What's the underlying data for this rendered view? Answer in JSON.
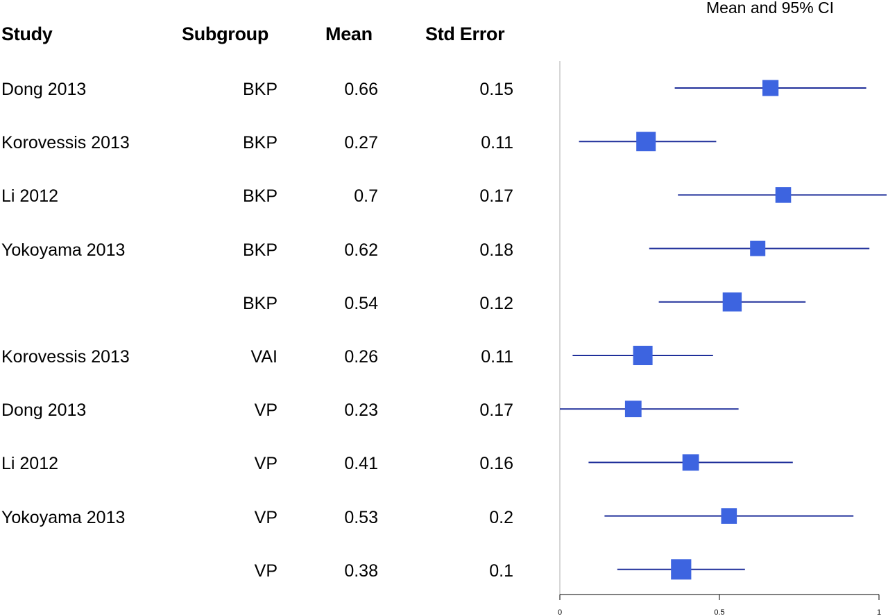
{
  "headers": {
    "study": "Study",
    "subgroup": "Subgroup",
    "mean": "Mean",
    "std_error": "Std Error"
  },
  "rows": [
    {
      "study": "Dong 2013",
      "subgroup": "BKP",
      "mean": "0.66",
      "se": "0.15"
    },
    {
      "study": "Korovessis 2013",
      "subgroup": "BKP",
      "mean": "0.27",
      "se": "0.11"
    },
    {
      "study": "Li 2012",
      "subgroup": "BKP",
      "mean": "0.7",
      "se": "0.17"
    },
    {
      "study": "Yokoyama 2013",
      "subgroup": "BKP",
      "mean": "0.62",
      "se": "0.18"
    },
    {
      "study": "",
      "subgroup": "BKP",
      "mean": "0.54",
      "se": "0.12"
    },
    {
      "study": "Korovessis 2013",
      "subgroup": "VAI",
      "mean": "0.26",
      "se": "0.11"
    },
    {
      "study": "Dong 2013",
      "subgroup": "VP",
      "mean": "0.23",
      "se": "0.17"
    },
    {
      "study": "Li 2012",
      "subgroup": "VP",
      "mean": "0.41",
      "se": "0.16"
    },
    {
      "study": "Yokoyama 2013",
      "subgroup": "VP",
      "mean": "0.53",
      "se": "0.2"
    },
    {
      "study": "",
      "subgroup": "VP",
      "mean": "0.38",
      "se": "0.1"
    }
  ],
  "chart_data": {
    "type": "scatter",
    "title": "Mean and 95% CI",
    "xlim": [
      0,
      1
    ],
    "xticks": [
      0,
      0.5,
      1
    ],
    "xtick_labels": [
      "0",
      "0.5",
      "1"
    ],
    "marker_color": "#3d64e0",
    "line_color": "#1f2f9a",
    "points": [
      {
        "mean": 0.66,
        "lower": 0.36,
        "upper": 0.96,
        "weight": 0.6
      },
      {
        "mean": 0.27,
        "lower": 0.06,
        "upper": 0.49,
        "weight": 1.0
      },
      {
        "mean": 0.7,
        "lower": 0.37,
        "upper": 1.03,
        "weight": 0.55
      },
      {
        "mean": 0.62,
        "lower": 0.28,
        "upper": 0.97,
        "weight": 0.5
      },
      {
        "mean": 0.54,
        "lower": 0.31,
        "upper": 0.77,
        "weight": 0.95
      },
      {
        "mean": 0.26,
        "lower": 0.04,
        "upper": 0.48,
        "weight": 1.0
      },
      {
        "mean": 0.23,
        "lower": 0.0,
        "upper": 0.56,
        "weight": 0.65
      },
      {
        "mean": 0.41,
        "lower": 0.09,
        "upper": 0.73,
        "weight": 0.65
      },
      {
        "mean": 0.53,
        "lower": 0.14,
        "upper": 0.92,
        "weight": 0.55
      },
      {
        "mean": 0.38,
        "lower": 0.18,
        "upper": 0.58,
        "weight": 1.1
      }
    ]
  }
}
